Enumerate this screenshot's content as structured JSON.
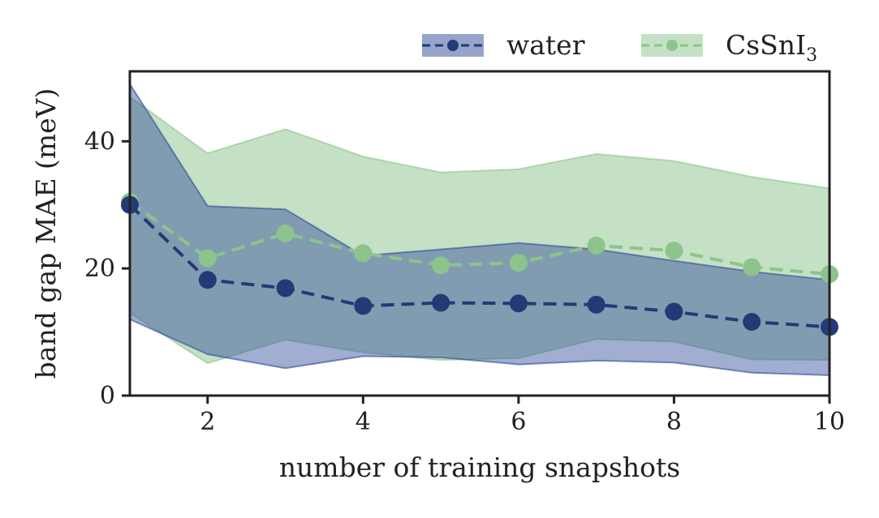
{
  "chart_data": {
    "type": "line",
    "title": "",
    "xlabel": "number of training snapshots",
    "ylabel": "band gap MAE (meV)",
    "xlim": [
      1,
      10
    ],
    "ylim": [
      0,
      51
    ],
    "x_ticks": [
      2,
      4,
      6,
      8,
      10
    ],
    "y_ticks": [
      0,
      20,
      40
    ],
    "grid": false,
    "legend_position": "top-right, outside above plot",
    "series": [
      {
        "name": "water",
        "color": "#243a76",
        "fill_color": "#2e4a9a",
        "line_style": "dashed",
        "marker": "circle",
        "x": [
          1,
          2,
          3,
          4,
          5,
          6,
          7,
          8,
          9,
          10
        ],
        "values": [
          30.0,
          18.2,
          16.9,
          14.1,
          14.6,
          14.5,
          14.3,
          13.2,
          11.6,
          10.8
        ],
        "upper": [
          49.0,
          29.8,
          29.3,
          22.0,
          23.0,
          24.0,
          23.0,
          21.2,
          19.5,
          18.2
        ],
        "lower": [
          12.0,
          6.5,
          4.3,
          6.2,
          6.0,
          4.9,
          5.5,
          5.2,
          3.6,
          3.2
        ]
      },
      {
        "name_prefix": "CsSnI",
        "name_subscript": "3",
        "color": "#8cc48c",
        "fill_color": "#8cc48c",
        "line_style": "dashed",
        "marker": "circle",
        "x": [
          1,
          2,
          3,
          4,
          5,
          6,
          7,
          8,
          9,
          10
        ],
        "values": [
          30.5,
          21.6,
          25.5,
          22.4,
          20.5,
          20.9,
          23.6,
          22.8,
          20.2,
          19.1
        ],
        "upper": [
          47.0,
          38.1,
          41.9,
          37.6,
          35.1,
          35.6,
          38.0,
          36.9,
          34.4,
          32.6
        ],
        "lower": [
          13.0,
          5.1,
          8.8,
          6.8,
          5.6,
          5.9,
          8.9,
          8.5,
          5.7,
          5.6
        ]
      }
    ]
  }
}
